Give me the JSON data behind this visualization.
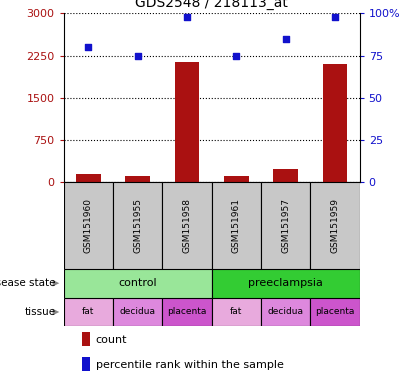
{
  "title": "GDS2548 / 218113_at",
  "samples": [
    "GSM151960",
    "GSM151955",
    "GSM151958",
    "GSM151961",
    "GSM151957",
    "GSM151959"
  ],
  "counts": [
    150,
    110,
    2130,
    115,
    230,
    2100
  ],
  "percentile_ranks": [
    80,
    75,
    98,
    75,
    85,
    98
  ],
  "ylim_left": [
    0,
    3000
  ],
  "ylim_right": [
    0,
    100
  ],
  "yticks_left": [
    0,
    750,
    1500,
    2250,
    3000
  ],
  "ytick_labels_left": [
    "0",
    "750",
    "1500",
    "2250",
    "3000"
  ],
  "yticks_right": [
    0,
    25,
    50,
    75,
    100
  ],
  "ytick_labels_right": [
    "0",
    "25",
    "50",
    "75",
    "100%"
  ],
  "bar_color": "#aa1111",
  "dot_color": "#1111cc",
  "disease_states": [
    "control",
    "control",
    "control",
    "preeclampsia",
    "preeclampsia",
    "preeclampsia"
  ],
  "disease_state_colors": {
    "control": "#99e699",
    "preeclampsia": "#33cc33"
  },
  "tissues": [
    "fat",
    "decidua",
    "placenta",
    "fat",
    "decidua",
    "placenta"
  ],
  "tissue_colors": {
    "fat": "#e8aadd",
    "decidua": "#dd88dd",
    "placenta": "#cc55cc"
  },
  "sample_bg_color": "#c8c8c8",
  "bar_width": 0.5,
  "fig_width": 4.11,
  "fig_height": 3.84,
  "dpi": 100
}
